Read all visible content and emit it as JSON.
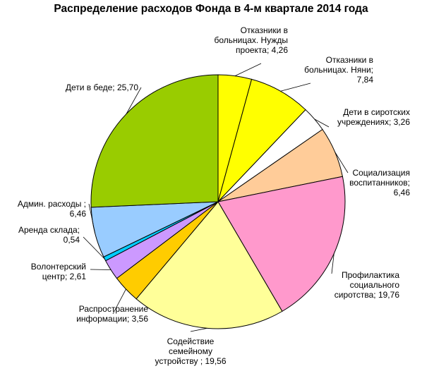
{
  "chart_data": {
    "type": "pie",
    "title": "Распределение расходов Фонда в 4-м квартале 2014 года",
    "slices": [
      {
        "label": "Отказники в больницах. Нужды проекта; 4,26",
        "value": 4.26,
        "color": "#ffff00"
      },
      {
        "label": "Отказники в больницах. Няни; 7,84",
        "value": 7.84,
        "color": "#ffff00"
      },
      {
        "label": "Дети в сиротских учреждениях; 3,26",
        "value": 3.26,
        "color": "#ffffff"
      },
      {
        "label": "Социализация воспитанников; 6,46",
        "value": 6.46,
        "color": "#ffcc99"
      },
      {
        "label": "Профилактика социального сиротства; 19,76",
        "value": 19.76,
        "color": "#ff99cc"
      },
      {
        "label": "Содействие семейному устройству ; 19,56",
        "value": 19.56,
        "color": "#ffff99"
      },
      {
        "label": "Распространение информации; 3,56",
        "value": 3.56,
        "color": "#ffcc00"
      },
      {
        "label": "Волонтерский центр; 2,61",
        "value": 2.61,
        "color": "#cc99ff"
      },
      {
        "label": "Аренда склада; 0,54",
        "value": 0.54,
        "color": "#00ccff"
      },
      {
        "label": "Админ. расходы ; 6,46",
        "value": 6.46,
        "color": "#99ccff"
      },
      {
        "label": "Дети в беде; 25,70",
        "value": 25.7,
        "color": "#99cc00"
      }
    ],
    "labels": [
      {
        "lines": [
          "Отказники в",
          "больницах. Нужды",
          "проекта; 4,26"
        ]
      },
      {
        "lines": [
          "Отказники в",
          "больницах. Няни;",
          "7,84"
        ]
      },
      {
        "lines": [
          "Дети в сиротских",
          "учреждениях; 3,26"
        ]
      },
      {
        "lines": [
          "Социализация",
          "воспитанников;",
          "6,46"
        ]
      },
      {
        "lines": [
          "Профилактика",
          "социального",
          "сиротства; 19,76"
        ]
      },
      {
        "lines": [
          "Содействие",
          "семейному",
          "устройству ; 19,56"
        ]
      },
      {
        "lines": [
          "Распространение",
          "информации; 3,56"
        ]
      },
      {
        "lines": [
          "Волонтерский",
          "центр; 2,61"
        ]
      },
      {
        "lines": [
          "Аренда склада;",
          "0,54"
        ]
      },
      {
        "lines": [
          "Админ. расходы ;",
          "6,46"
        ]
      },
      {
        "lines": [
          "Дети в беде; 25,70"
        ]
      }
    ]
  }
}
